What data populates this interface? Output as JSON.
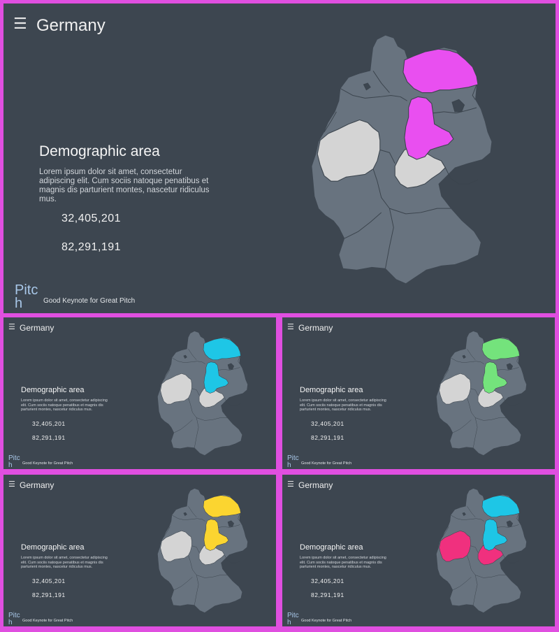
{
  "slide_common": {
    "menu_icon": "hamburger-menu-icon",
    "title": "Germany",
    "heading": "Demographic area",
    "body": "Lorem ipsum dolor sit amet, consectetur adipiscing elit. Cum sociis natoque penatibus et magnis dis parturient montes, nascetur ridiculus mus.",
    "stat_1": "32,405,201",
    "stat_2": "82,291,191",
    "logo": "Pitch",
    "tagline": "Good Keynote for Great Pitch"
  },
  "colors": {
    "frame": "#e04fe0",
    "slide_background": "#3d4650",
    "map_base": "#68737f",
    "neutral_state": "#d4d4d4"
  },
  "slides": [
    {
      "variant": "main",
      "highlight_colors": {
        "north": "#e94ff0",
        "center": "#e94ff0",
        "west": "#d4d4d4",
        "south": "#d4d4d4"
      }
    },
    {
      "variant": "thumbnail",
      "highlight_colors": {
        "north": "#1ec6e6",
        "center": "#1ec6e6",
        "west": "#d4d4d4",
        "south": "#d4d4d4"
      }
    },
    {
      "variant": "thumbnail",
      "highlight_colors": {
        "north": "#74e37c",
        "center": "#74e37c",
        "west": "#d4d4d4",
        "south": "#d4d4d4"
      }
    },
    {
      "variant": "thumbnail",
      "highlight_colors": {
        "north": "#fbd530",
        "center": "#fbd530",
        "west": "#d4d4d4",
        "south": "#d4d4d4"
      }
    },
    {
      "variant": "thumbnail",
      "highlight_colors": {
        "north": "#1ec6e6",
        "center": "#1ec6e6",
        "west": "#f0307e",
        "south": "#f0307e"
      }
    }
  ]
}
